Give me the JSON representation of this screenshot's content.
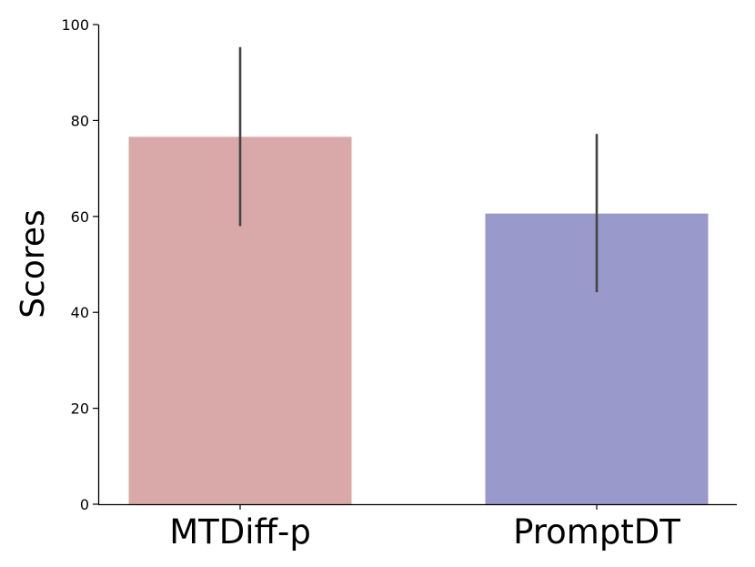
{
  "chart_data": {
    "type": "bar",
    "title": "",
    "xlabel": "",
    "ylabel": "Scores",
    "categories": [
      "MTDiff-p",
      "PromptDT"
    ],
    "values": [
      76.6,
      60.6
    ],
    "error_low": [
      58.0,
      44.2
    ],
    "error_high": [
      95.3,
      77.2
    ],
    "colors": [
      "#d9a9a9",
      "#9a99cc"
    ],
    "ylim": [
      0,
      100
    ],
    "yticks": [
      0,
      20,
      40,
      60,
      80,
      100
    ],
    "grid": false,
    "legend": "none"
  }
}
